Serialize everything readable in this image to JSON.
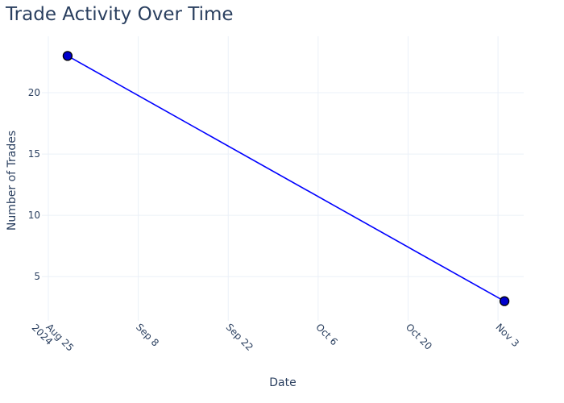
{
  "chart_data": {
    "type": "line",
    "title": "Trade Activity Over Time",
    "xlabel": "Date",
    "ylabel": "Number of Trades",
    "x_axis_type": "date",
    "xlim": [
      "2024-08-24",
      "2024-11-07"
    ],
    "ylim": [
      1.4,
      24.6
    ],
    "grid": true,
    "x_ticks": [
      {
        "value": "2024-08-25",
        "label": "Aug 25",
        "sublabel": "2024"
      },
      {
        "value": "2024-09-08",
        "label": "Sep 8",
        "sublabel": ""
      },
      {
        "value": "2024-09-22",
        "label": "Sep 22",
        "sublabel": ""
      },
      {
        "value": "2024-10-06",
        "label": "Oct 6",
        "sublabel": ""
      },
      {
        "value": "2024-10-20",
        "label": "Oct 20",
        "sublabel": ""
      },
      {
        "value": "2024-11-03",
        "label": "Nov 3",
        "sublabel": ""
      }
    ],
    "y_ticks": [
      5,
      10,
      15,
      20
    ],
    "series": [
      {
        "color": "#0000ff",
        "marker_fill": "#0000cd",
        "marker_edge": "#000000",
        "points": [
          {
            "x": "2024-08-28",
            "y": 23
          },
          {
            "x": "2024-11-04",
            "y": 3
          }
        ]
      }
    ]
  }
}
